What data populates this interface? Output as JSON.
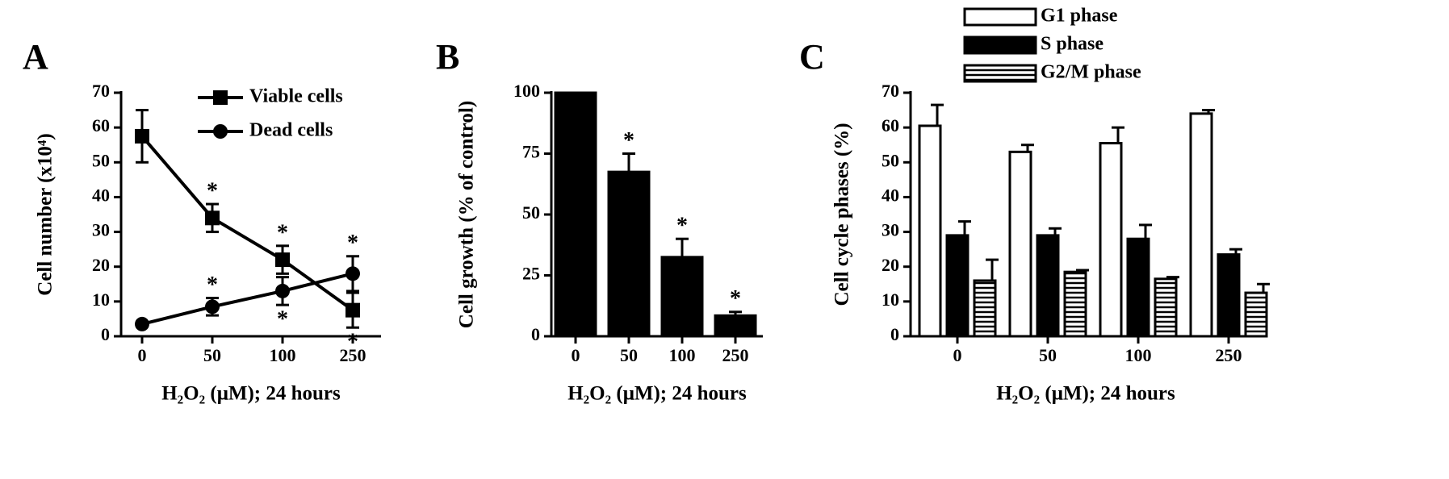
{
  "chart_data": [
    {
      "type": "line",
      "panel_label": "A",
      "x_label": "H₂O₂ (μM); 24 hours",
      "y_label": "Cell number (x10⁴)",
      "categories": [
        "0",
        "50",
        "100",
        "250"
      ],
      "ylim": [
        0,
        70
      ],
      "yticks": [
        0,
        10,
        20,
        30,
        40,
        50,
        60,
        70
      ],
      "legend": "upper right",
      "series": [
        {
          "name": "Viable cells",
          "color": "#000000",
          "marker": "square",
          "values": [
            57.5,
            34,
            22,
            7.5
          ],
          "errors": [
            7.5,
            4,
            4,
            5
          ],
          "significance": [
            null,
            "*",
            "*",
            "*"
          ]
        },
        {
          "name": "Dead cells",
          "color": "#000000",
          "marker": "circle",
          "values": [
            3.5,
            8.5,
            13,
            18
          ],
          "errors": [
            0,
            2.5,
            4,
            5
          ],
          "significance": [
            null,
            "*",
            "*",
            "*"
          ]
        }
      ]
    },
    {
      "type": "bar",
      "panel_label": "B",
      "x_label": "H₂O₂ (μM); 24 hours",
      "y_label": "Cell growth (% of control)",
      "categories": [
        "0",
        "50",
        "100",
        "250"
      ],
      "ylim": [
        0,
        100
      ],
      "yticks": [
        0,
        25,
        50,
        75,
        100
      ],
      "series": [
        {
          "color": "#000000",
          "values": [
            100,
            67.5,
            32.5,
            8.5
          ],
          "errors": [
            0,
            7.5,
            7.5,
            1.5
          ],
          "significance": [
            null,
            "*",
            "*",
            "*"
          ]
        }
      ]
    },
    {
      "type": "bar",
      "panel_label": "C",
      "x_label": "H₂O₂ (μM); 24 hours",
      "y_label": "Cell cycle phases (%)",
      "categories": [
        "0",
        "50",
        "100",
        "250"
      ],
      "ylim": [
        0,
        70
      ],
      "yticks": [
        0,
        10,
        20,
        30,
        40,
        50,
        60,
        70
      ],
      "legend": "top",
      "series": [
        {
          "name": "G1 phase",
          "color": "#ffffff",
          "values": [
            60.5,
            53,
            55.5,
            64
          ],
          "errors": [
            6,
            2,
            4.5,
            1
          ]
        },
        {
          "name": "S phase",
          "color": "#000000",
          "values": [
            29,
            29,
            28,
            23.5
          ],
          "errors": [
            4,
            2,
            4,
            1.5
          ]
        },
        {
          "name": "G2/M phase",
          "color": "#ffffff",
          "pattern": "horizontal-lines",
          "values": [
            16,
            18.5,
            16.5,
            12.5
          ],
          "errors": [
            6,
            0.5,
            0.5,
            2.5
          ]
        }
      ]
    }
  ]
}
